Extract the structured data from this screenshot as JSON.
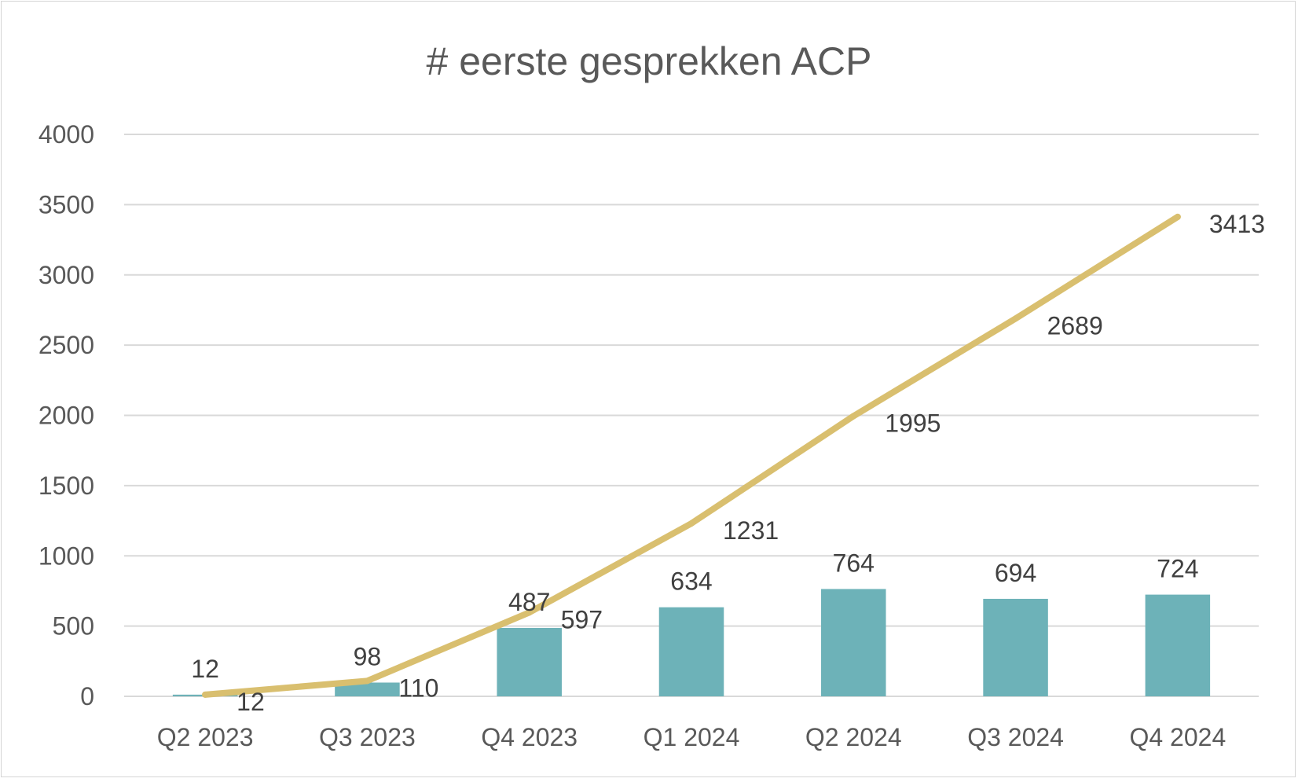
{
  "chart_data": {
    "type": "bar",
    "title": "# eerste gesprekken ACP",
    "xlabel": "",
    "ylabel": "",
    "categories": [
      "Q2 2023",
      "Q3 2023",
      "Q4 2023",
      "Q1 2024",
      "Q2 2024",
      "Q3 2024",
      "Q4 2024"
    ],
    "ylim": [
      0,
      4000
    ],
    "yticks": [
      "0",
      "500",
      "1000",
      "1500",
      "2000",
      "2500",
      "3000",
      "3500",
      "4000"
    ],
    "grid": true,
    "legend": "none",
    "series": [
      {
        "type": "bar",
        "values": [
          12,
          98,
          487,
          634,
          764,
          694,
          724
        ],
        "labels": [
          "12",
          "98",
          "487",
          "634",
          "764",
          "694",
          "724"
        ],
        "color": "#6DB2B8"
      },
      {
        "type": "line",
        "values": [
          12,
          110,
          597,
          1231,
          1995,
          2689,
          3413
        ],
        "labels": [
          "12",
          "110",
          "597",
          "1231",
          "1995",
          "2689",
          "3413"
        ],
        "color": "#D9BF6F"
      }
    ]
  }
}
